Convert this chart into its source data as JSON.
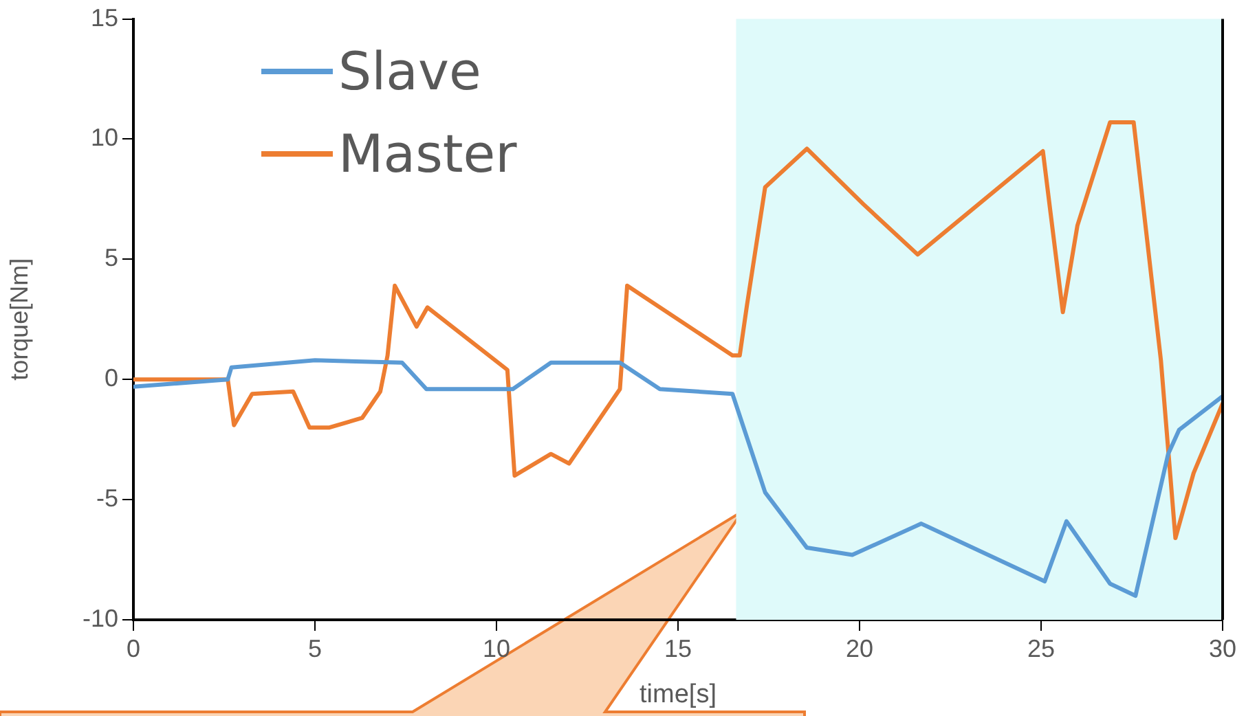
{
  "chart_data": {
    "type": "line",
    "xlabel": "time[s]",
    "ylabel": "torque[Nm]",
    "xlim": [
      0,
      30
    ],
    "xticks": [
      0,
      5,
      10,
      15,
      20,
      25,
      30
    ],
    "ylim": [
      -10,
      15
    ],
    "yticks": [
      -10,
      -5,
      0,
      5,
      10,
      15
    ],
    "grid": false,
    "legend": "top left",
    "marker": "none",
    "line_style": "solid",
    "bands": [
      {
        "axis": "x",
        "from": 16.6,
        "to": 30,
        "color": "#dffafa"
      }
    ],
    "series": [
      {
        "name": "Slave",
        "color": "#5b9bd5",
        "x": [
          0,
          2.6,
          2.7,
          5.0,
          7.4,
          8.07,
          10.45,
          11.5,
          13.4,
          14.5,
          16.5,
          17.4,
          18.55,
          19.8,
          21.7,
          25.1,
          25.7,
          26.9,
          27.6,
          28.5,
          28.8,
          30
        ],
        "values": [
          -0.3,
          0,
          0.5,
          0.8,
          0.7,
          -0.4,
          -0.4,
          0.7,
          0.7,
          -0.4,
          -0.6,
          -4.7,
          -7.0,
          -7.3,
          -6.0,
          -8.4,
          -5.9,
          -8.5,
          -9.0,
          -3.1,
          -2.1,
          -0.7
        ]
      },
      {
        "name": "Master",
        "color": "#ed7d31",
        "x": [
          0,
          2.6,
          2.77,
          3.27,
          4.4,
          4.85,
          5.4,
          6.3,
          6.8,
          7.0,
          7.2,
          7.8,
          8.1,
          10.3,
          10.5,
          11.5,
          12.0,
          13.4,
          13.6,
          16.5,
          16.7,
          16.9,
          17.4,
          18.55,
          20.1,
          21.6,
          25.05,
          25.6,
          26.0,
          26.9,
          27.55,
          28.3,
          28.7,
          29.2,
          30
        ],
        "values": [
          0,
          0,
          -1.9,
          -0.6,
          -0.5,
          -2.0,
          -2.0,
          -1.6,
          -0.5,
          1.0,
          3.9,
          2.2,
          3.0,
          0.4,
          -4.0,
          -3.1,
          -3.5,
          -0.4,
          3.9,
          1.0,
          1.0,
          3.1,
          8.0,
          9.6,
          7.3,
          5.2,
          9.5,
          2.8,
          6.4,
          10.7,
          10.7,
          0.8,
          -6.6,
          -3.9,
          -1.0
        ]
      }
    ]
  }
}
